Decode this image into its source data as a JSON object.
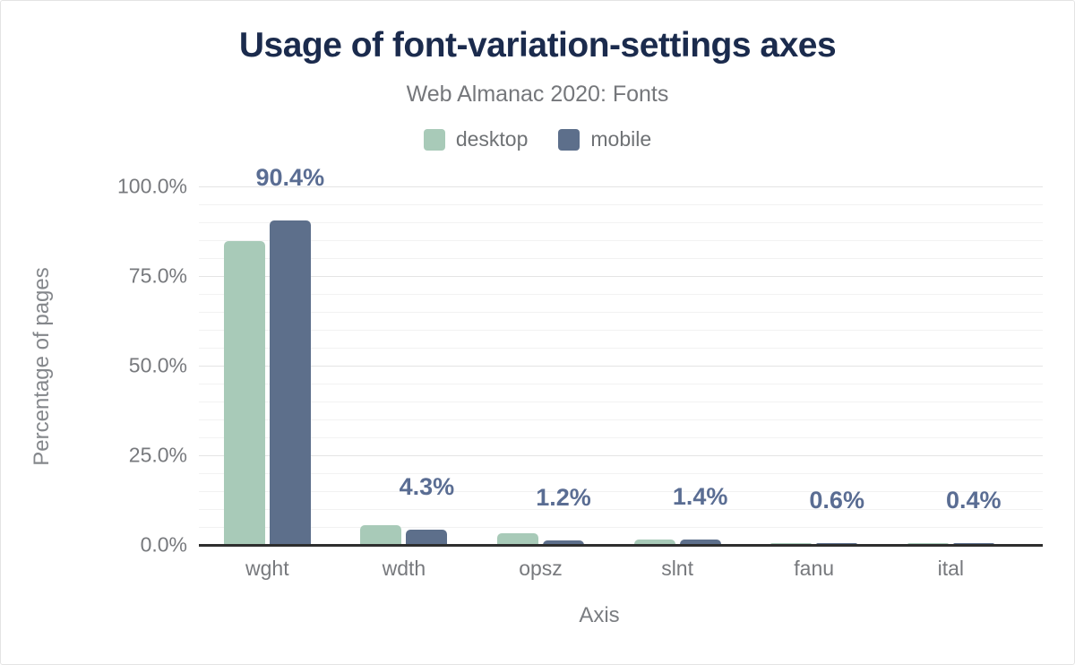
{
  "header": {
    "title": "Usage of font-variation-settings axes",
    "subtitle": "Web Almanac 2020: Fonts"
  },
  "legend": [
    {
      "label": "desktop",
      "color": "#a8cab8"
    },
    {
      "label": "mobile",
      "color": "#5d6f8b"
    }
  ],
  "colors": {
    "desktop_bar": "#a8cab8",
    "mobile_bar": "#5d6f8b",
    "value_label": "#5a6d93",
    "title_text": "#1b2b4d",
    "axis_text": "#77797d",
    "gridline_major": "#e4e4e4",
    "gridline_minor": "#f2f2f2",
    "axis_line": "#2e2e2e"
  },
  "chart_data": {
    "type": "bar",
    "title": "Usage of font-variation-settings axes",
    "subtitle": "Web Almanac 2020: Fonts",
    "xlabel": "Axis",
    "ylabel": "Percentage of pages",
    "categories": [
      "wght",
      "wdth",
      "opsz",
      "slnt",
      "fanu",
      "ital"
    ],
    "series": [
      {
        "name": "desktop",
        "color": "#a8cab8",
        "values": [
          84.7,
          5.6,
          3.3,
          1.6,
          0.4,
          0.5
        ]
      },
      {
        "name": "mobile",
        "color": "#5d6f8b",
        "values": [
          90.4,
          4.3,
          1.2,
          1.4,
          0.6,
          0.4
        ]
      }
    ],
    "value_labels": [
      "90.4%",
      "4.3%",
      "1.2%",
      "1.4%",
      "0.6%",
      "0.4%"
    ],
    "value_labels_series": "mobile",
    "ylim": [
      0,
      100
    ],
    "y_ticks": [
      {
        "label": "0.0%",
        "value": 0
      },
      {
        "label": "25.0%",
        "value": 25
      },
      {
        "label": "50.0%",
        "value": 50
      },
      {
        "label": "75.0%",
        "value": 75
      },
      {
        "label": "100.0%",
        "value": 100
      }
    ],
    "grid": {
      "major_step": 25,
      "minor_step": 5,
      "legend_position": "top"
    }
  }
}
